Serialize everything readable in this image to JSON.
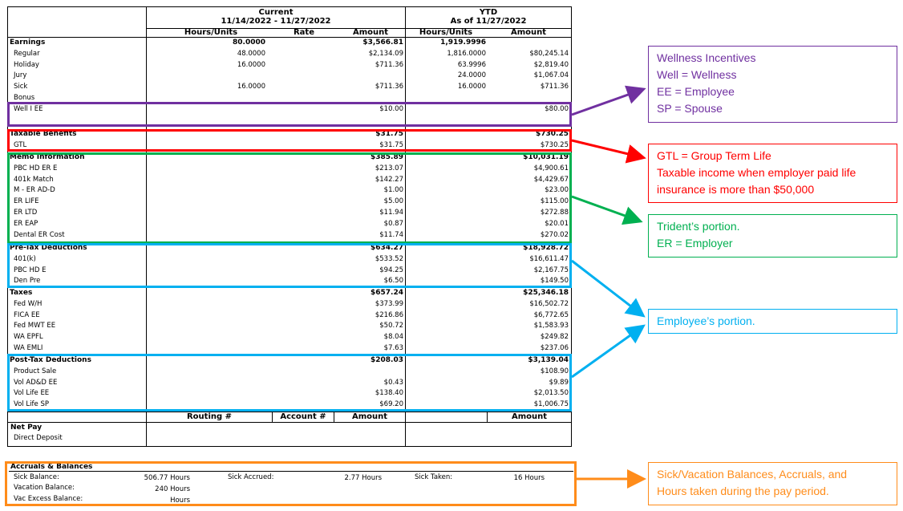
{
  "header": {
    "current_title": "Current",
    "current_range": "11/14/2022 - 11/27/2022",
    "ytd_title": "YTD",
    "ytd_asof": "As of 11/27/2022",
    "col_hours": "Hours/Units",
    "col_rate": "Rate",
    "col_amount": "Amount",
    "col_ytd_hours": "Hours/Units",
    "col_ytd_amount": "Amount"
  },
  "sections": [
    {
      "title": "Earnings",
      "hours": "80.0000",
      "amount": "$3,566.81",
      "ytd_hours": "1,919.9996",
      "ytd_amount": "",
      "rows": [
        {
          "label": "Regular",
          "hours": "48.0000",
          "amount": "$2,134.09",
          "ytd_hours": "1,816.0000",
          "ytd_amount": "$80,245.14"
        },
        {
          "label": "Holiday",
          "hours": "16.0000",
          "amount": "$711.36",
          "ytd_hours": "63.9996",
          "ytd_amount": "$2,819.40"
        },
        {
          "label": "Jury",
          "hours": "",
          "amount": "",
          "ytd_hours": "24.0000",
          "ytd_amount": "$1,067.04"
        },
        {
          "label": "Sick",
          "hours": "16.0000",
          "amount": "$711.36",
          "ytd_hours": "16.0000",
          "ytd_amount": "$711.36"
        },
        {
          "label": "Bonus",
          "hours": "",
          "amount": "",
          "ytd_hours": "",
          "ytd_amount": ""
        },
        {
          "label": "Well I EE",
          "hours": "",
          "amount": "$10.00",
          "ytd_hours": "",
          "ytd_amount": "$80.00"
        }
      ]
    },
    {
      "title": "Taxable Benefits",
      "hours": "",
      "amount": "$31.75",
      "ytd_hours": "",
      "ytd_amount": "$730.25",
      "rows": [
        {
          "label": "GTL",
          "hours": "",
          "amount": "$31.75",
          "ytd_hours": "",
          "ytd_amount": "$730.25"
        }
      ]
    },
    {
      "title": "Memo Information",
      "hours": "",
      "amount": "$385.89",
      "ytd_hours": "",
      "ytd_amount": "$10,031.19",
      "rows": [
        {
          "label": "PBC HD ER E",
          "amount": "$213.07",
          "ytd_amount": "$4,900.61"
        },
        {
          "label": "401k Match",
          "amount": "$142.27",
          "ytd_amount": "$4,429.67"
        },
        {
          "label": "M - ER AD-D",
          "amount": "$1.00",
          "ytd_amount": "$23.00"
        },
        {
          "label": "ER LIFE",
          "amount": "$5.00",
          "ytd_amount": "$115.00"
        },
        {
          "label": "ER LTD",
          "amount": "$11.94",
          "ytd_amount": "$272.88"
        },
        {
          "label": "ER EAP",
          "amount": "$0.87",
          "ytd_amount": "$20.01"
        },
        {
          "label": "Dental ER Cost",
          "amount": "$11.74",
          "ytd_amount": "$270.02"
        }
      ]
    },
    {
      "title": "Pre-Tax Deductions",
      "hours": "",
      "amount": "$634.27",
      "ytd_hours": "",
      "ytd_amount": "$18,928.72",
      "rows": [
        {
          "label": "401(k)",
          "amount": "$533.52",
          "ytd_amount": "$16,611.47"
        },
        {
          "label": "PBC HD E",
          "amount": "$94.25",
          "ytd_amount": "$2,167.75"
        },
        {
          "label": "Den Pre",
          "amount": "$6.50",
          "ytd_amount": "$149.50"
        }
      ]
    },
    {
      "title": "Taxes",
      "hours": "",
      "amount": "$657.24",
      "ytd_hours": "",
      "ytd_amount": "$25,346.18",
      "rows": [
        {
          "label": "Fed W/H",
          "amount": "$373.99",
          "ytd_amount": "$16,502.72"
        },
        {
          "label": "FICA EE",
          "amount": "$216.86",
          "ytd_amount": "$6,772.65"
        },
        {
          "label": "Fed MWT EE",
          "amount": "$50.72",
          "ytd_amount": "$1,583.93"
        },
        {
          "label": "WA EPFL",
          "amount": "$8.04",
          "ytd_amount": "$249.82"
        },
        {
          "label": "WA EMLI",
          "amount": "$7.63",
          "ytd_amount": "$237.06"
        }
      ]
    },
    {
      "title": "Post-Tax Deductions",
      "hours": "",
      "amount": "$208.03",
      "ytd_hours": "",
      "ytd_amount": "$3,139.04",
      "rows": [
        {
          "label": "Product Sale",
          "amount": "",
          "ytd_amount": "$108.90"
        },
        {
          "label": "Vol AD&D EE",
          "amount": "$0.43",
          "ytd_amount": "$9.89"
        },
        {
          "label": "Vol Life EE",
          "amount": "$138.40",
          "ytd_amount": "$2,013.50"
        },
        {
          "label": "Vol Life SP",
          "amount": "$69.20",
          "ytd_amount": "$1,006.75"
        }
      ]
    }
  ],
  "netpay": {
    "col_routing": "Routing #",
    "col_account": "Account #",
    "col_amount": "Amount",
    "col_ytd_amount": "Amount",
    "title": "Net Pay",
    "row_label": "Direct Deposit"
  },
  "accruals": {
    "title": "Accruals & Balances",
    "sick_balance_label": "Sick Balance:",
    "sick_balance_value": "506.77 Hours",
    "sick_accrued_label": "Sick Accrued:",
    "sick_accrued_value": "2.77 Hours",
    "sick_taken_label": "Sick Taken:",
    "sick_taken_value": "16 Hours",
    "vacation_balance_label": "Vacation Balance:",
    "vacation_balance_value": "240 Hours",
    "vac_excess_label": "Vac Excess Balance:",
    "vac_excess_value": "Hours"
  },
  "notes": {
    "wellness": [
      "Wellness Incentives",
      "Well = Wellness",
      "EE = Employee",
      "SP = Spouse"
    ],
    "gtl": [
      "GTL = Group Term Life",
      "Taxable income when employer paid life",
      "insurance is more than $50,000"
    ],
    "trident": [
      "Trident’s portion.",
      "ER = Employer"
    ],
    "employee": [
      "Employee’s portion."
    ],
    "balances": [
      "Sick/Vacation Balances, Accruals, and",
      "Hours taken during the pay period."
    ]
  },
  "colors": {
    "purple": "#7030a0",
    "red": "#ff0000",
    "green": "#00b050",
    "blue": "#00b0f0",
    "orange": "#ff8c1a"
  }
}
